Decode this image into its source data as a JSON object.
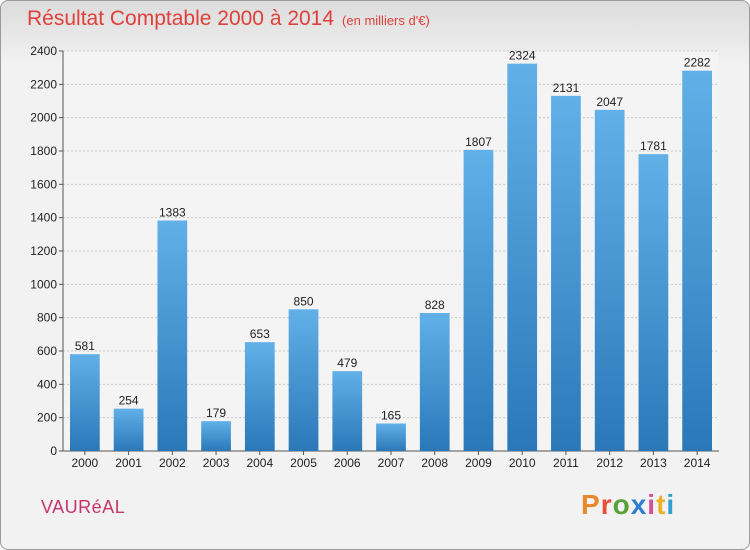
{
  "header": {
    "title": "Résultat Comptable 2000 à 2014",
    "unit": "(en milliers d'€)"
  },
  "footer": {
    "commune": "VAURéAL",
    "logo": "Proxiti",
    "logo_colors": [
      "#e8892b",
      "#e94e3a",
      "#5aa13a",
      "#2f7fd0",
      "#d64d9a",
      "#e8b32b",
      "#2fa0d0"
    ]
  },
  "colors": {
    "bar_top": "#62b0e8",
    "bar_bottom": "#2a78b8",
    "title": "#e0403a",
    "commune": "#c8356a"
  },
  "chart_data": {
    "type": "bar",
    "categories": [
      "2000",
      "2001",
      "2002",
      "2003",
      "2004",
      "2005",
      "2006",
      "2007",
      "2008",
      "2009",
      "2010",
      "2011",
      "2012",
      "2013",
      "2014"
    ],
    "values": [
      581,
      254,
      1383,
      179,
      653,
      850,
      479,
      165,
      828,
      1807,
      2324,
      2131,
      2047,
      1781,
      2282
    ],
    "ylim": [
      0,
      2400
    ],
    "yticks": [
      0,
      200,
      400,
      600,
      800,
      1000,
      1200,
      1400,
      1600,
      1800,
      2000,
      2200,
      2400
    ],
    "grid": true,
    "title": "Résultat Comptable 2000 à 2014",
    "xlabel": "",
    "ylabel": ""
  }
}
